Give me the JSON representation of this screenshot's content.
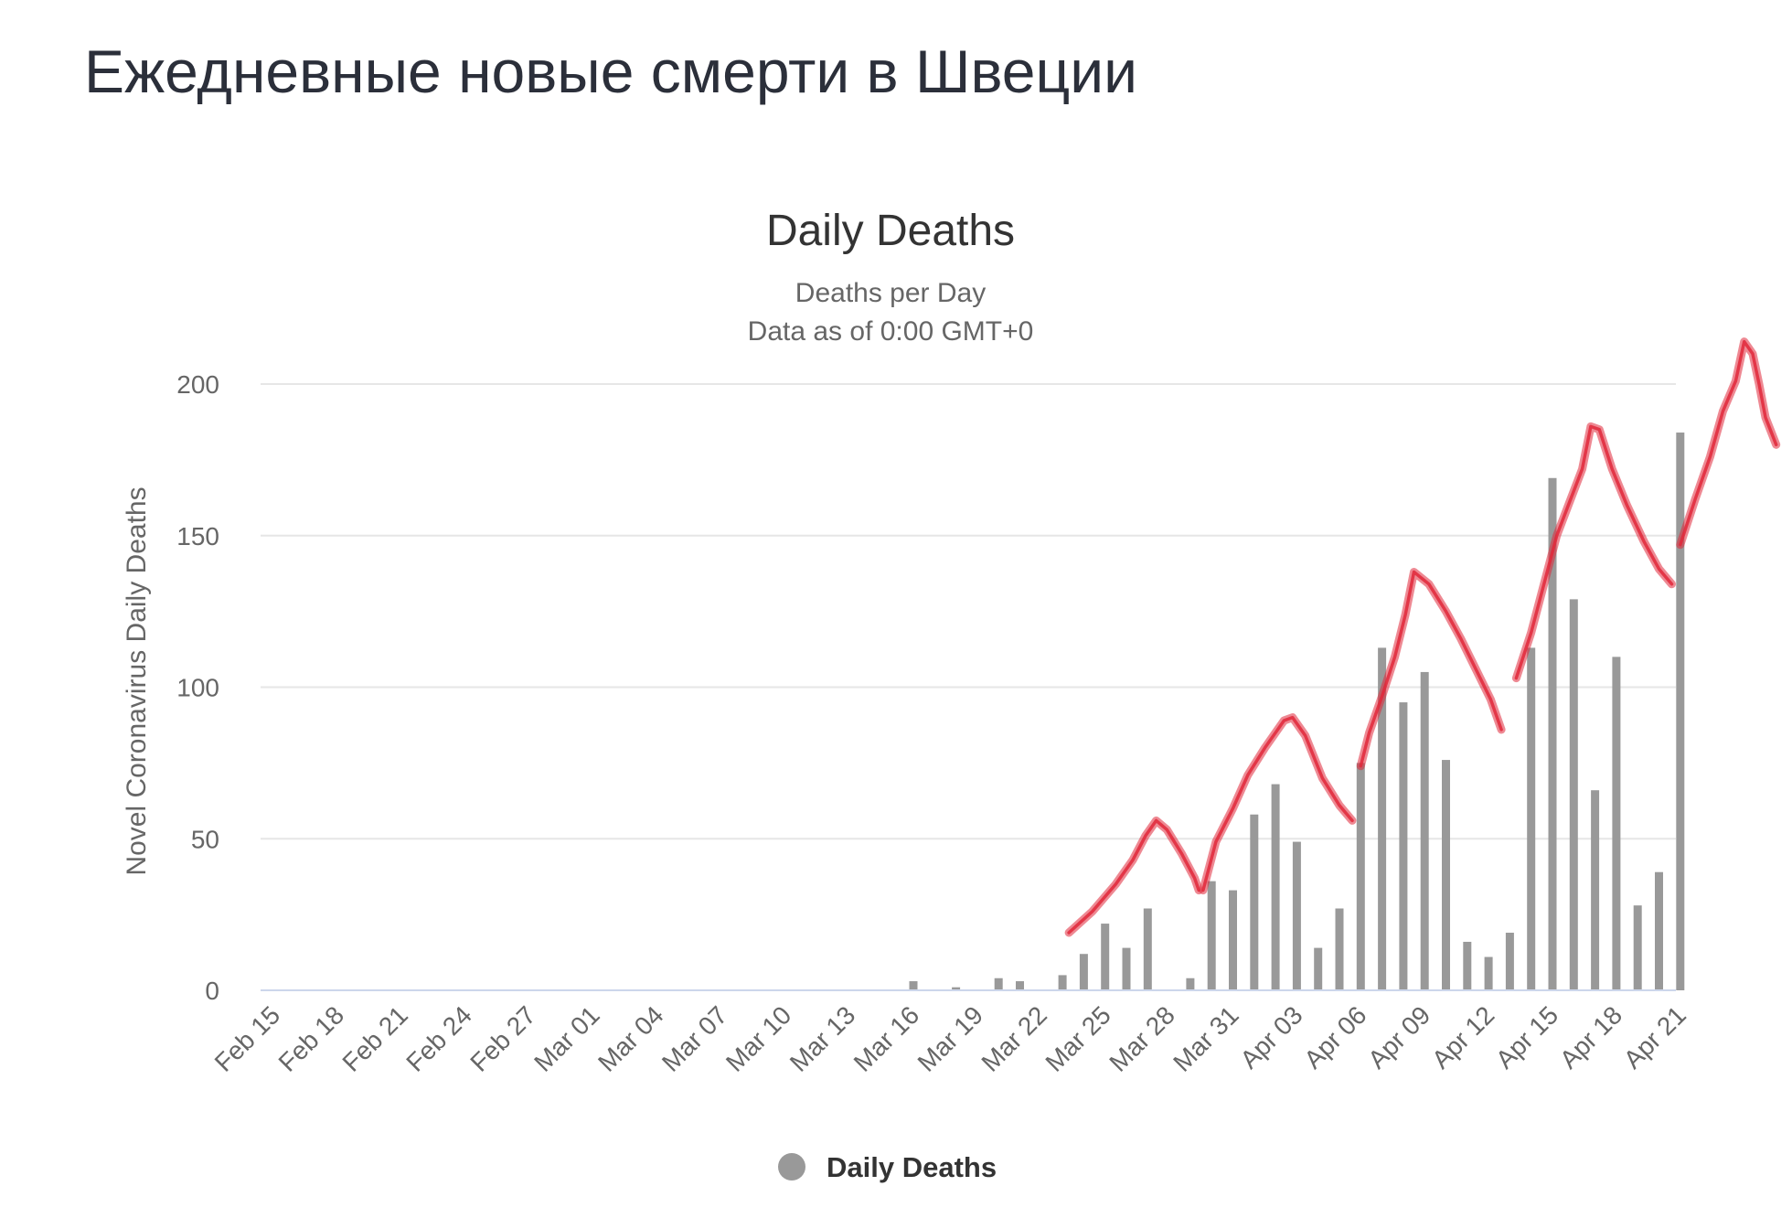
{
  "page": {
    "heading": "Ежедневные новые смерти в Швеции"
  },
  "chart_data": {
    "type": "bar",
    "title": "Daily Deaths",
    "subtitle": [
      "Deaths per Day",
      "Data as of 0:00 GMT+0"
    ],
    "ylabel": "Novel Coronavirus Daily Deaths",
    "xlabel": "",
    "ylim": [
      0,
      200
    ],
    "yticks": [
      0,
      50,
      100,
      150,
      200
    ],
    "grid": true,
    "bar_color": "#999999",
    "annotation_color": "#e0283a",
    "legend": {
      "position": "bottom-center",
      "label": "Daily Deaths"
    },
    "categories": [
      "Feb 15",
      "Feb 16",
      "Feb 17",
      "Feb 18",
      "Feb 19",
      "Feb 20",
      "Feb 21",
      "Feb 22",
      "Feb 23",
      "Feb 24",
      "Feb 25",
      "Feb 26",
      "Feb 27",
      "Feb 28",
      "Feb 29",
      "Mar 01",
      "Mar 02",
      "Mar 03",
      "Mar 04",
      "Mar 05",
      "Mar 06",
      "Mar 07",
      "Mar 08",
      "Mar 09",
      "Mar 10",
      "Mar 11",
      "Mar 12",
      "Mar 13",
      "Mar 14",
      "Mar 15",
      "Mar 16",
      "Mar 17",
      "Mar 18",
      "Mar 19",
      "Mar 20",
      "Mar 21",
      "Mar 22",
      "Mar 23",
      "Mar 24",
      "Mar 25",
      "Mar 26",
      "Mar 27",
      "Mar 28",
      "Mar 29",
      "Mar 30",
      "Mar 31",
      "Apr 01",
      "Apr 02",
      "Apr 03",
      "Apr 04",
      "Apr 05",
      "Apr 06",
      "Apr 07",
      "Apr 08",
      "Apr 09",
      "Apr 10",
      "Apr 11",
      "Apr 12",
      "Apr 13",
      "Apr 14",
      "Apr 15",
      "Apr 16",
      "Apr 17",
      "Apr 18",
      "Apr 19",
      "Apr 20",
      "Apr 21",
      "Apr 22"
    ],
    "xtick_labels": [
      "Feb 15",
      "Feb 18",
      "Feb 21",
      "Feb 24",
      "Feb 27",
      "Mar 01",
      "Mar 04",
      "Mar 07",
      "Mar 10",
      "Mar 13",
      "Mar 16",
      "Mar 19",
      "Mar 22",
      "Mar 25",
      "Mar 28",
      "Mar 31",
      "Apr 03",
      "Apr 06",
      "Apr 09",
      "Apr 12",
      "Apr 15",
      "Apr 18",
      "Apr 21"
    ],
    "series": [
      {
        "name": "Daily Deaths",
        "values": [
          0,
          0,
          0,
          0,
          0,
          0,
          0,
          0,
          0,
          0,
          0,
          0,
          0,
          0,
          0,
          0,
          0,
          0,
          0,
          0,
          0,
          0,
          0,
          0,
          0,
          0,
          0,
          0,
          0,
          0,
          3,
          0,
          1,
          0,
          4,
          3,
          0,
          5,
          12,
          22,
          14,
          27,
          0,
          4,
          36,
          33,
          58,
          68,
          49,
          14,
          27,
          75,
          113,
          95,
          105,
          76,
          16,
          11,
          19,
          113,
          169,
          129,
          66,
          110,
          28,
          39,
          184,
          0
        ]
      }
    ],
    "annotations": {
      "description": "hand-drawn red weekly-wave strokes over the bars",
      "strokes": [
        [
          [
            37.3,
            19
          ],
          [
            38.4,
            26
          ],
          [
            39.5,
            35
          ],
          [
            40.3,
            43
          ],
          [
            40.9,
            51
          ],
          [
            41.4,
            56
          ],
          [
            41.9,
            53
          ],
          [
            42.6,
            45
          ],
          [
            43.2,
            37
          ],
          [
            43.4,
            33
          ]
        ],
        [
          [
            43.6,
            33
          ],
          [
            44.2,
            49
          ],
          [
            45.0,
            60
          ],
          [
            45.7,
            71
          ],
          [
            46.5,
            80
          ],
          [
            47.4,
            89
          ],
          [
            47.8,
            90
          ],
          [
            48.4,
            84
          ],
          [
            49.2,
            70
          ],
          [
            50.0,
            61
          ],
          [
            50.6,
            56
          ]
        ],
        [
          [
            51.0,
            74
          ],
          [
            51.4,
            85
          ],
          [
            52.0,
            97
          ],
          [
            52.6,
            110
          ],
          [
            53.1,
            124
          ],
          [
            53.5,
            138
          ],
          [
            54.2,
            134
          ],
          [
            55.0,
            125
          ],
          [
            55.7,
            116
          ],
          [
            56.4,
            106
          ],
          [
            57.1,
            96
          ],
          [
            57.6,
            86
          ]
        ],
        [
          [
            58.3,
            103
          ],
          [
            59.0,
            118
          ],
          [
            59.6,
            134
          ],
          [
            60.2,
            150
          ],
          [
            60.8,
            161
          ],
          [
            61.4,
            172
          ],
          [
            61.8,
            186
          ],
          [
            62.2,
            185
          ],
          [
            62.8,
            172
          ],
          [
            63.5,
            160
          ],
          [
            64.3,
            148
          ],
          [
            65.0,
            139
          ],
          [
            65.6,
            134
          ]
        ],
        [
          [
            66.0,
            147
          ],
          [
            66.7,
            162
          ],
          [
            67.4,
            176
          ],
          [
            68.0,
            191
          ],
          [
            68.6,
            201
          ],
          [
            69.0,
            214
          ],
          [
            69.4,
            210
          ],
          [
            69.7,
            200
          ],
          [
            70.0,
            189
          ],
          [
            70.5,
            180
          ]
        ]
      ]
    }
  }
}
